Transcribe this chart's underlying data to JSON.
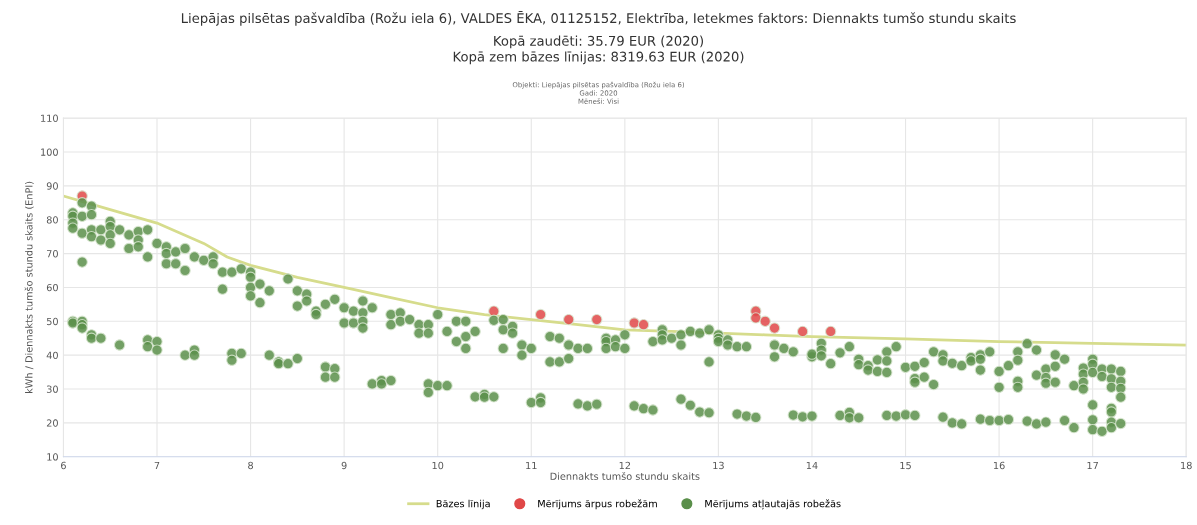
{
  "chart_data": {
    "type": "scatter",
    "title": "Liepājas pilsētas pašvaldība (Rožu iela 6), VALDES ĒKA, 01125152, Elektrība, Ietekmes faktors: Diennakts tumšo stundu skaits",
    "subtitle": "Kopā zaudēti: 35.79 EUR (2020)\nKopā zem bāzes līnijas: 8319.63 EUR (2020)",
    "annotations": [
      "Objekti: Liepājas pilsētas pašvaldība (Rožu iela 6)\nGadi: 2020\nMēneši: Visi"
    ],
    "xlabel": "Diennakts tumšo stundu skaits",
    "ylabel": "kWh / Diennakts tumšo stundu skaits (EnPI)",
    "xlim": [
      6,
      18
    ],
    "xticks": [
      6,
      7,
      8,
      9,
      10,
      11,
      12,
      13,
      14,
      15,
      16,
      17,
      18
    ],
    "ylim": [
      10,
      110
    ],
    "yticks": [
      10,
      20,
      30,
      40,
      50,
      60,
      70,
      80,
      90,
      100,
      110
    ],
    "grid": true,
    "legend": "bottom",
    "series": [
      {
        "name": "Bāzes līnija",
        "type": "line",
        "line_style": "solid",
        "color": "#d6dc8c",
        "x": [
          6,
          6.5,
          7,
          7.5,
          7.75,
          8,
          8.5,
          9,
          9.5,
          10,
          10.5,
          11,
          11.5,
          12,
          12.5,
          13,
          13.5,
          14,
          15,
          16,
          17,
          18
        ],
        "values": [
          87,
          83,
          79,
          73,
          69,
          66.5,
          63,
          60,
          57,
          54,
          52,
          50.5,
          49,
          47.5,
          47,
          46.5,
          46,
          45.5,
          44.8,
          44,
          43.5,
          43
        ]
      },
      {
        "name": "Mērījums ārpus robežām",
        "color": "#e04848",
        "marker": "circle",
        "x": [
          6.2,
          10.6,
          11.1,
          11.4,
          11.7,
          12.1,
          12.2,
          13.4,
          13.4,
          13.5,
          13.6,
          13.9,
          14.2
        ],
        "values": [
          87,
          53,
          52,
          50.5,
          50.5,
          49.5,
          49,
          53,
          51,
          50,
          48,
          47,
          47
        ]
      },
      {
        "name": "Mērījums atļautajās robežās",
        "color": "#5a8f4a",
        "marker": "circle",
        "x": [
          6.1,
          6.1,
          6.1,
          6.1,
          6.2,
          6.2,
          6.2,
          6.2,
          6.3,
          6.3,
          6.3,
          6.3,
          6.4,
          6.4,
          6.5,
          6.5,
          6.5,
          6.5,
          6.6,
          6.7,
          6.7,
          6.8,
          6.8,
          6.8,
          6.9,
          6.9,
          7.0,
          7.1,
          7.1,
          7.1,
          7.2,
          7.2,
          7.3,
          7.3,
          7.4,
          7.5,
          7.6,
          7.6,
          7.7,
          7.7,
          7.8,
          7.9,
          8.0,
          8.0,
          8.0,
          8.0,
          8.1,
          8.1,
          8.2,
          8.4,
          8.5,
          8.5,
          8.6,
          8.6,
          8.7,
          8.7,
          8.8,
          8.9,
          9.0,
          9.0,
          9.1,
          9.1,
          9.2,
          9.2,
          9.2,
          9.2,
          9.3,
          9.5,
          9.5,
          9.6,
          9.6,
          9.7,
          9.8,
          9.8,
          9.9,
          9.9,
          10.0,
          10.1,
          10.2,
          10.2,
          10.3,
          10.3,
          10.3,
          10.4,
          10.6,
          10.7,
          10.7,
          10.7,
          10.8,
          10.8,
          10.9,
          10.9,
          11.0,
          11.2,
          11.2,
          11.3,
          11.3,
          11.4,
          11.4,
          11.5,
          11.6,
          11.8,
          11.8,
          11.8,
          11.9,
          11.9,
          12.0,
          12.0,
          12.3,
          12.4,
          12.4,
          12.4,
          12.5,
          12.6,
          12.6,
          12.7,
          12.8,
          12.9,
          12.9,
          13.0,
          13.0,
          13.0,
          13.1,
          13.1,
          13.2,
          13.3,
          13.6,
          13.6,
          13.7,
          13.8,
          14.0,
          14.0,
          14.1,
          14.1,
          14.1,
          14.2,
          14.3,
          14.4,
          14.5,
          14.5,
          14.6,
          14.6,
          14.7,
          14.7,
          14.8,
          14.8,
          14.8,
          14.9,
          15.0,
          15.1,
          15.1,
          15.1,
          15.2,
          15.2,
          15.3,
          15.3,
          15.4,
          15.4,
          15.5,
          15.6,
          15.7,
          15.7,
          15.8,
          15.8,
          15.8,
          15.9,
          16.0,
          16.0,
          16.1,
          16.2,
          16.2,
          16.2,
          16.2,
          16.3,
          16.4,
          16.4,
          16.5,
          16.5,
          16.5,
          16.6,
          16.6,
          16.6,
          16.7,
          16.8,
          16.9,
          16.9,
          16.9,
          16.9,
          17.0,
          17.0,
          17.0,
          17.1,
          17.1,
          17.2,
          17.2,
          17.2,
          17.3,
          17.3,
          17.3,
          17.3,
          6.1,
          6.1,
          6.2,
          6.2,
          6.2,
          6.3,
          6.3,
          6.4,
          6.6,
          6.9,
          6.9,
          7.0,
          7.0,
          7.3,
          7.4,
          7.4,
          7.8,
          7.8,
          7.9,
          8.2,
          8.3,
          8.3,
          8.4,
          8.5,
          8.8,
          8.8,
          8.9,
          8.9,
          9.3,
          9.4,
          9.4,
          9.5,
          9.9,
          9.9,
          10.0,
          10.1,
          10.4,
          10.5,
          10.5,
          10.6,
          11.0,
          11.1,
          11.1,
          11.5,
          11.6,
          11.7,
          12.1,
          12.2,
          12.3,
          12.6,
          12.7,
          12.8,
          12.9,
          13.2,
          13.3,
          13.4,
          13.8,
          13.9,
          14.0,
          14.3,
          14.4,
          14.4,
          14.5,
          14.8,
          14.9,
          15.0,
          15.1,
          15.4,
          15.5,
          15.6,
          15.8,
          15.9,
          16.0,
          16.1,
          16.3,
          16.4,
          16.5,
          16.7,
          16.8,
          17.0,
          17.0,
          17.0,
          17.1,
          17.2,
          17.2,
          17.2,
          17.2,
          17.3
        ],
        "values": [
          82,
          81,
          79,
          77.5,
          85,
          81,
          76,
          67.5,
          84,
          81.5,
          77,
          75,
          77,
          74,
          79.5,
          78,
          75.5,
          73,
          77,
          75.5,
          71.5,
          76.5,
          74,
          72,
          77,
          69,
          73,
          72,
          70,
          67,
          70.5,
          67,
          71.5,
          65,
          69,
          68,
          69,
          67,
          64.5,
          59.5,
          64.5,
          65.5,
          64.5,
          63,
          60,
          57.5,
          61,
          55.5,
          59,
          62.5,
          59,
          54.5,
          58,
          56,
          53,
          52,
          55,
          56.5,
          54,
          49.5,
          53,
          49.5,
          56,
          52.5,
          50,
          48,
          54,
          52,
          49,
          52.5,
          50,
          50.5,
          49,
          46.5,
          49,
          46.5,
          52,
          47,
          50,
          44,
          50,
          45.5,
          42,
          47,
          50.3,
          50.5,
          47.5,
          42,
          48.5,
          46.5,
          43,
          40,
          42,
          45.5,
          38,
          45,
          38,
          43,
          39,
          42,
          42,
          45,
          44,
          42,
          44.5,
          42.5,
          46,
          42,
          44,
          47.5,
          46,
          44.5,
          45,
          46,
          43,
          47,
          46.5,
          47.5,
          38,
          46,
          45,
          44,
          44.5,
          43,
          42.5,
          42.5,
          43,
          39.5,
          42,
          41,
          39.5,
          40.3,
          43.5,
          41.5,
          39.8,
          37.5,
          40.7,
          42.5,
          38.8,
          37.2,
          36.9,
          35.6,
          38.6,
          35.2,
          41,
          38.3,
          34.9,
          42.5,
          36.4,
          36.7,
          33.1,
          32,
          37.8,
          33.5,
          41,
          31.3,
          40.1,
          38.3,
          37.6,
          36.9,
          39.3,
          38.3,
          40.1,
          38.8,
          35.6,
          41,
          35.2,
          30.5,
          36.9,
          41,
          38.5,
          32.3,
          30.5,
          43.4,
          41.5,
          34.1,
          35.9,
          33.4,
          31.7,
          40.1,
          36.7,
          32,
          38.8,
          31,
          36.2,
          34.4,
          32,
          30,
          38.8,
          37.3,
          34.9,
          35.9,
          33.7,
          35.9,
          33,
          30.5,
          35.2,
          32.3,
          30.2,
          27.6,
          50,
          49.5,
          50,
          49,
          48,
          46,
          45,
          45,
          43,
          44.5,
          42.5,
          44,
          41.5,
          40,
          41.5,
          40,
          40.5,
          38.5,
          40.5,
          40,
          38,
          37.5,
          37.5,
          39,
          36.5,
          33.5,
          36,
          33.5,
          31.5,
          32.5,
          31.5,
          32.5,
          31.5,
          29,
          31,
          31,
          27.7,
          28.4,
          27.6,
          27.7,
          26,
          27.4,
          26,
          25.6,
          25,
          25.5,
          25,
          24.2,
          23.8,
          27,
          25.2,
          23.2,
          23,
          22.6,
          22,
          21.6,
          22.3,
          21.8,
          22,
          22.2,
          23.1,
          21.5,
          21.5,
          22.2,
          22,
          22.4,
          22.2,
          21.7,
          20,
          19.7,
          21.1,
          20.7,
          20.7,
          21,
          20.5,
          19.7,
          20.2,
          20.7,
          18.6,
          25.3,
          20.9,
          18,
          17.5,
          24.3,
          23.2,
          20.2,
          18.6,
          19.8
        ]
      }
    ]
  }
}
